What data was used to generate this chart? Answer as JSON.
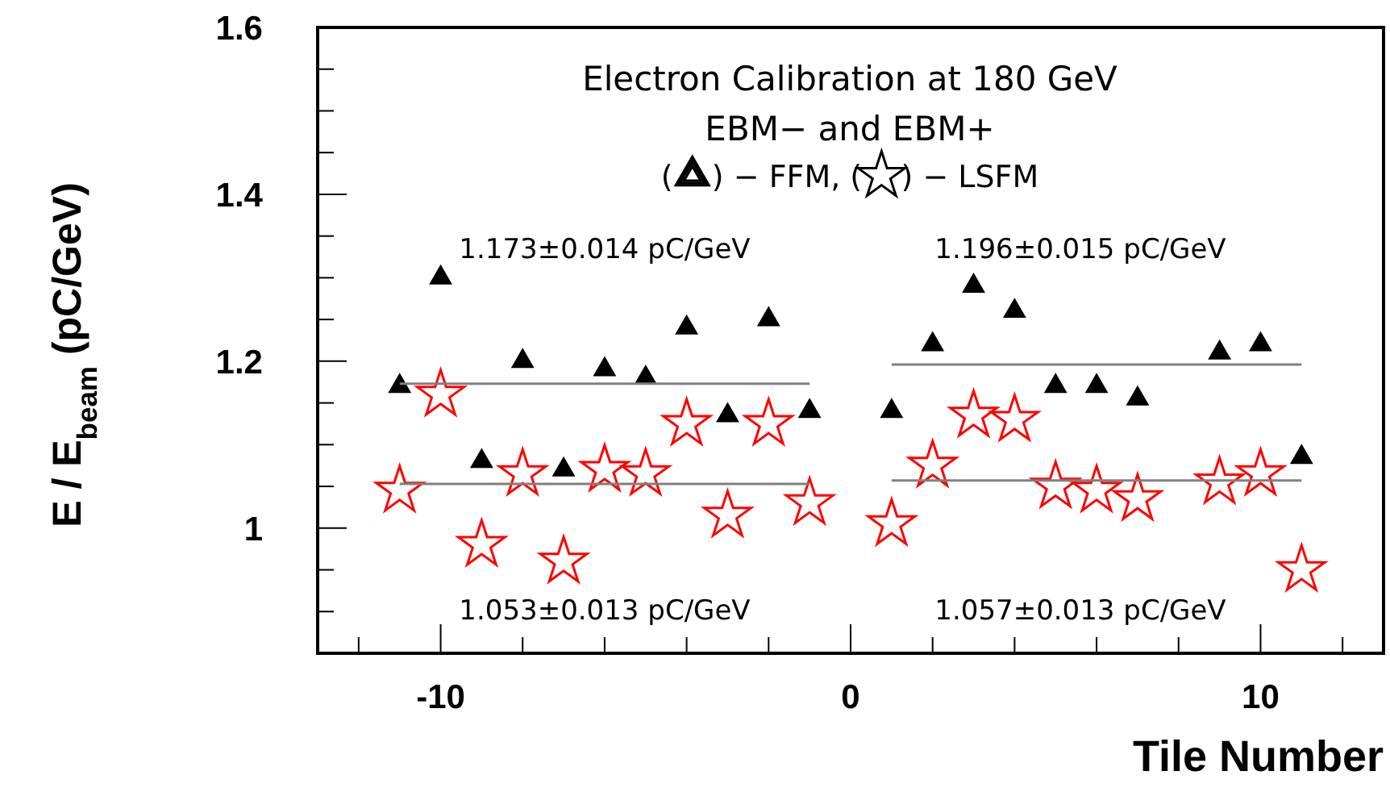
{
  "chart_data": {
    "type": "scatter",
    "title": "Electron Calibration at 180 GeV",
    "subtitle": "EBM− and EBM+",
    "xlabel": "Tile Number",
    "ylabel": "E / E$_{beam}$ (pC/GeV)",
    "xlim": [
      -13,
      13
    ],
    "ylim": [
      0.85,
      1.6
    ],
    "xticks": [
      {
        "value": -12,
        "label": null
      },
      {
        "value": -10,
        "label": "-10"
      },
      {
        "value": -8,
        "label": null
      },
      {
        "value": -6,
        "label": null
      },
      {
        "value": -4,
        "label": null
      },
      {
        "value": -2,
        "label": null
      },
      0,
      {
        "value": 2,
        "label": null
      },
      {
        "value": 4,
        "label": null
      },
      {
        "value": 6,
        "label": null
      },
      {
        "value": 8,
        "label": null
      },
      10,
      {
        "value": 12,
        "label": null
      }
    ],
    "yticks": [
      {
        "value": 0.9,
        "label": null
      },
      {
        "value": 0.95,
        "label": null
      },
      1,
      {
        "value": 1.05,
        "label": null
      },
      {
        "value": 1.1,
        "label": null
      },
      {
        "value": 1.15,
        "label": null
      },
      1.2,
      {
        "value": 1.25,
        "label": null
      },
      {
        "value": 1.3,
        "label": null
      },
      {
        "value": 1.35,
        "label": null
      },
      1.4,
      {
        "value": 1.45,
        "label": null
      },
      {
        "value": 1.5,
        "label": null
      },
      {
        "value": 1.55,
        "label": null
      },
      1.6
    ],
    "grid": false,
    "series": [
      {
        "color": "#000000",
        "marker": "triangle",
        "x": [
          -11,
          -10,
          -9,
          -8,
          -7,
          -6,
          -5,
          -4,
          -3,
          -2,
          -1,
          1,
          2,
          3,
          4,
          5,
          6,
          7,
          9,
          10,
          11
        ],
        "values": [
          1.17,
          1.3,
          1.08,
          1.2,
          1.07,
          1.19,
          1.18,
          1.24,
          1.135,
          1.25,
          1.14,
          1.14,
          1.22,
          1.29,
          1.26,
          1.17,
          1.17,
          1.155,
          1.21,
          1.22,
          1.085
        ]
      },
      {
        "color": "#ff0000",
        "marker": "star",
        "x": [
          -11,
          -10,
          -9,
          -8,
          -7,
          -6,
          -5,
          -4,
          -3,
          -2,
          -1,
          1,
          2,
          3,
          4,
          5,
          6,
          7,
          9,
          10,
          11
        ],
        "values": [
          1.045,
          1.16,
          0.98,
          1.065,
          0.96,
          1.07,
          1.065,
          1.125,
          1.015,
          1.125,
          1.03,
          1.005,
          1.075,
          1.135,
          1.13,
          1.05,
          1.045,
          1.035,
          1.055,
          1.065,
          0.95
        ]
      },
      {
        "type": "line",
        "color": "#808080",
        "marker": "none",
        "x": [
          -11,
          -1
        ],
        "values": [
          1.173,
          1.173
        ]
      },
      {
        "type": "line",
        "color": "#808080",
        "marker": "none",
        "x": [
          -11,
          -1
        ],
        "values": [
          1.053,
          1.053
        ]
      },
      {
        "type": "line",
        "color": "#808080",
        "marker": "none",
        "x": [
          1,
          11
        ],
        "values": [
          1.196,
          1.196
        ]
      },
      {
        "type": "line",
        "color": "#808080",
        "marker": "none",
        "x": [
          1,
          11
        ],
        "values": [
          1.057,
          1.057
        ]
      }
    ],
    "annotations": [
      "(    ) − FFM, (    ) − LSFM",
      "1.173±0.014 pC/GeV",
      "1.196±0.015 pC/GeV",
      "1.053±0.013 pC/GeV",
      "1.057±0.013 pC/GeV"
    ]
  }
}
